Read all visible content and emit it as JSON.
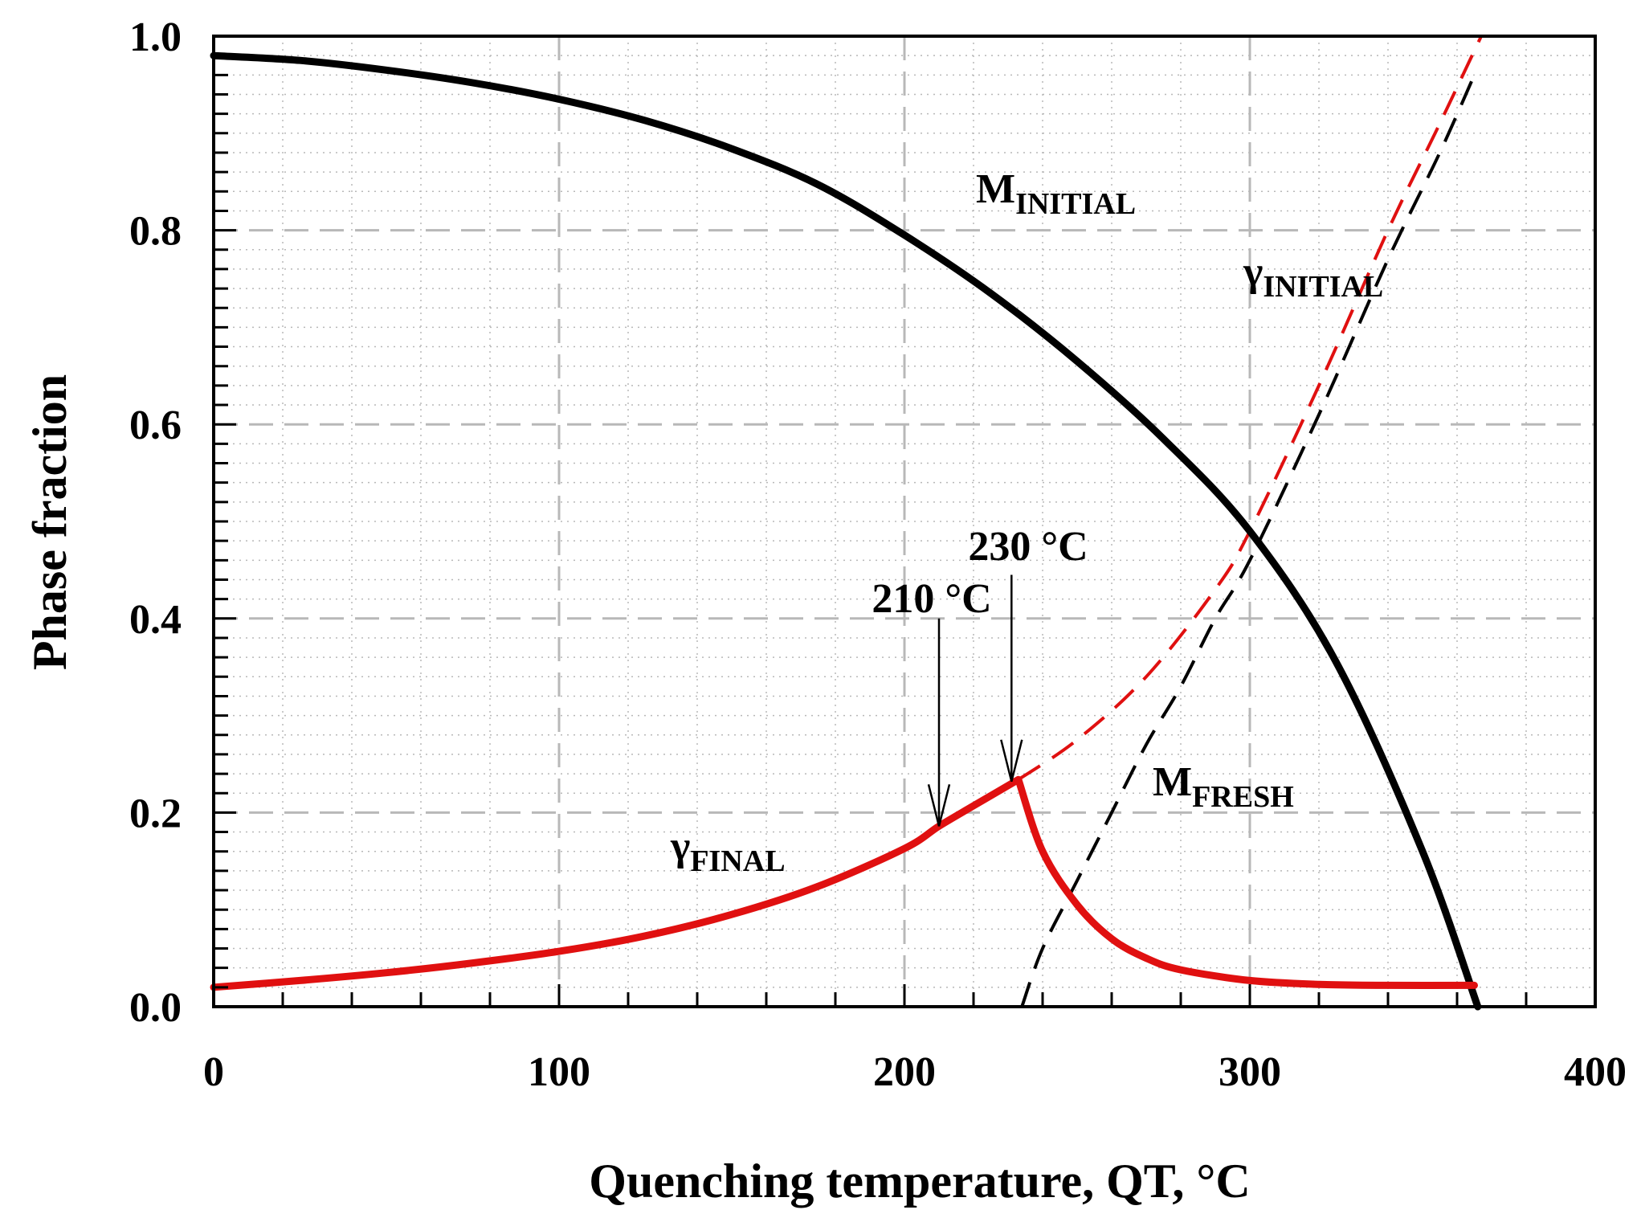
{
  "chart_data": {
    "type": "line",
    "xlabel": "Quenching temperature, QT, °C",
    "ylabel": "Phase fraction",
    "xlim": [
      0,
      400
    ],
    "ylim": [
      0,
      1.0
    ],
    "xticks": [
      0,
      100,
      200,
      300,
      400
    ],
    "xtick_labels": [
      "0",
      "100",
      "200",
      "300",
      "400"
    ],
    "yticks": [
      0,
      0.2,
      0.4,
      0.6,
      0.8,
      1.0
    ],
    "ytick_labels": [
      "0.0",
      "0.2",
      "0.4",
      "0.6",
      "0.8",
      "1.0"
    ],
    "grid": true,
    "colors": {
      "black": "#000000",
      "red": "#e01010",
      "grid": "#b8b8b8"
    },
    "series": [
      {
        "name": "M_INITIAL",
        "label_main": "M",
        "label_sub": "INITIAL",
        "color": "#000000",
        "style": "solid",
        "x": [
          0,
          25,
          50,
          75,
          100,
          125,
          150,
          175,
          200,
          225,
          250,
          275,
          300,
          325,
          350,
          366
        ],
        "y": [
          0.98,
          0.975,
          0.965,
          0.952,
          0.935,
          0.913,
          0.884,
          0.847,
          0.795,
          0.735,
          0.665,
          0.585,
          0.49,
          0.355,
          0.16,
          0.0
        ]
      },
      {
        "name": "γ_FINAL",
        "label_main": "γ",
        "label_sub": "FINAL",
        "color": "#e01010",
        "style": "solid",
        "x": [
          0,
          25,
          50,
          75,
          100,
          125,
          150,
          175,
          200,
          210,
          220,
          233,
          240,
          250,
          260,
          270,
          280,
          300,
          320,
          340,
          365
        ],
        "y": [
          0.02,
          0.027,
          0.035,
          0.045,
          0.057,
          0.073,
          0.095,
          0.124,
          0.163,
          0.186,
          0.207,
          0.234,
          0.16,
          0.105,
          0.07,
          0.05,
          0.038,
          0.027,
          0.023,
          0.022,
          0.022
        ]
      },
      {
        "name": "γ_INITIAL",
        "label_main": "γ",
        "label_sub": "INITIAL",
        "color": "#e01010",
        "style": "dashed",
        "x": [
          233,
          250,
          270,
          290,
          300,
          320,
          340,
          355,
          367
        ],
        "y": [
          0.234,
          0.275,
          0.34,
          0.43,
          0.49,
          0.64,
          0.8,
          0.91,
          1.0
        ]
      },
      {
        "name": "M_FRESH",
        "label_main": "M",
        "label_sub": "FRESH",
        "color": "#000000",
        "style": "dashed",
        "x": [
          234,
          240,
          250,
          260,
          270,
          280,
          290,
          300,
          320,
          340,
          355,
          365
        ],
        "y": [
          0.0,
          0.06,
          0.13,
          0.2,
          0.27,
          0.33,
          0.4,
          0.46,
          0.61,
          0.77,
          0.88,
          0.96
        ]
      }
    ],
    "annotations": [
      {
        "text": "210 °C",
        "arrow_x": 210,
        "arrow_y_from": 0.4,
        "arrow_y_to": 0.186
      },
      {
        "text": "230 °C",
        "arrow_x": 231,
        "arrow_y_from": 0.445,
        "arrow_y_to": 0.232
      }
    ]
  }
}
